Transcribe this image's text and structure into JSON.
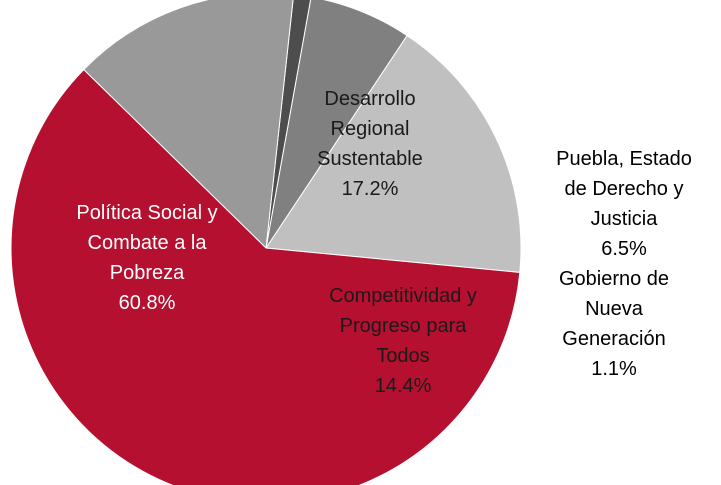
{
  "chart_data": {
    "type": "pie",
    "title": "",
    "slices": [
      {
        "label_lines": [
          "Desarrollo",
          "Regional",
          "Sustentable"
        ],
        "value": 17.2,
        "value_text": "17.2%",
        "color": "#c0c0c0",
        "label_color": "#1a1a1a"
      },
      {
        "label_lines": [
          "Puebla, Estado",
          "de Derecho y",
          "Justicia"
        ],
        "value": 6.5,
        "value_text": "6.5%",
        "color": "#808080",
        "label_color": "#000000"
      },
      {
        "label_lines": [
          "Gobierno de",
          "Nueva",
          "Generación"
        ],
        "value": 1.1,
        "value_text": "1.1%",
        "color": "#4d4d4d",
        "label_color": "#000000"
      },
      {
        "label_lines": [
          "Competitividad y",
          "Progreso para",
          "Todos"
        ],
        "value": 14.4,
        "value_text": "14.4%",
        "color": "#999999",
        "label_color": "#1a1a1a"
      },
      {
        "label_lines": [
          "Política Social y",
          "Combate a la",
          "Pobreza"
        ],
        "value": 60.8,
        "value_text": "60.8%",
        "color": "#b5102f",
        "label_color": "#ffffff"
      }
    ],
    "legend": "none"
  }
}
